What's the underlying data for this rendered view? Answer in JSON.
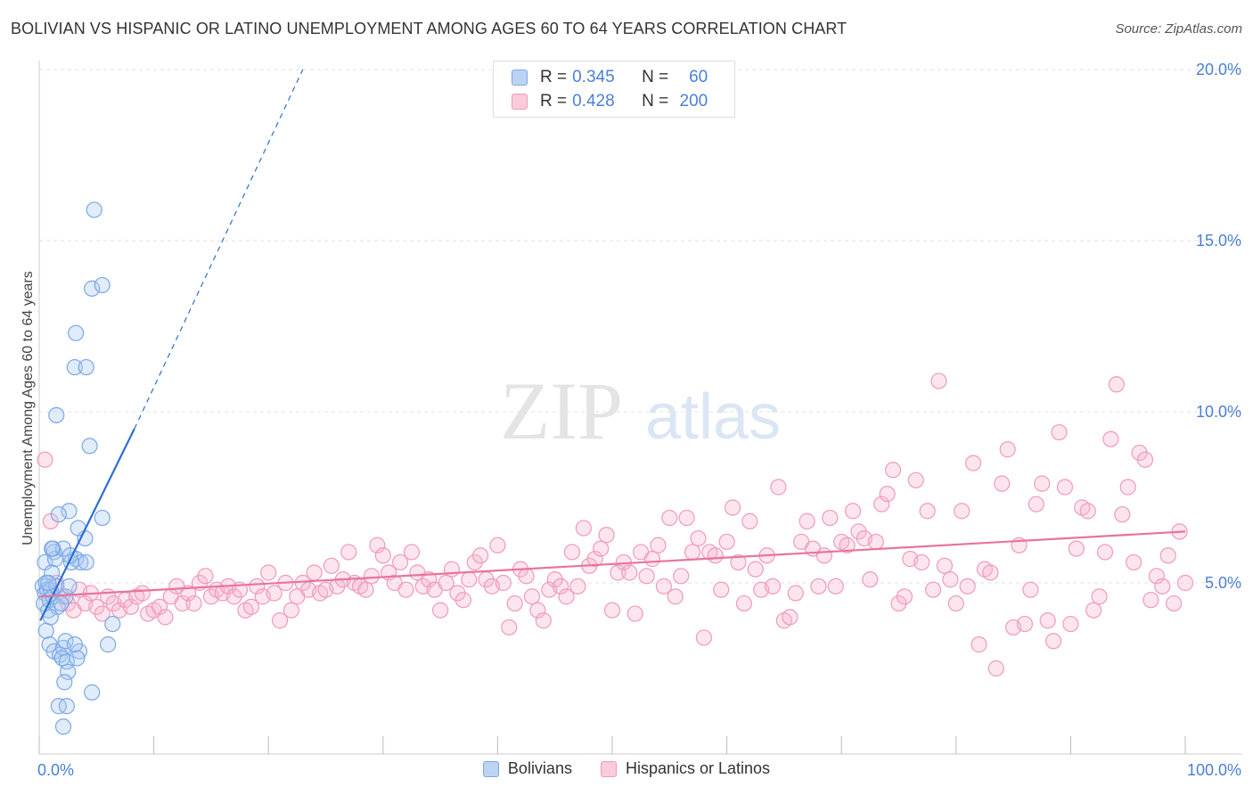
{
  "header": {
    "title": "BOLIVIAN VS HISPANIC OR LATINO UNEMPLOYMENT AMONG AGES 60 TO 64 YEARS CORRELATION CHART",
    "source": "Source: ZipAtlas.com"
  },
  "watermark": {
    "zip": "ZIP",
    "atlas": "atlas"
  },
  "legend": {
    "rows": [
      {
        "r_label": "R =",
        "r_value": "0.345",
        "n_label": "N =",
        "n_value": "60",
        "color": "#7aa8e6"
      },
      {
        "r_label": "R =",
        "r_value": "0.428",
        "n_label": "N =",
        "n_value": "200",
        "color": "#f09ab8"
      }
    ]
  },
  "bottom_legend": {
    "items": [
      {
        "label": "Bolivians",
        "color": "#7aa8e6"
      },
      {
        "label": "Hispanics or Latinos",
        "color": "#f09ab8"
      }
    ]
  },
  "chart_data": {
    "type": "scatter",
    "title": "BOLIVIAN VS HISPANIC OR LATINO UNEMPLOYMENT AMONG AGES 60 TO 64 YEARS CORRELATION CHART",
    "xlabel": "",
    "ylabel": "Unemployment Among Ages 60 to 64 years",
    "xlim": [
      0,
      100
    ],
    "ylim": [
      0,
      20
    ],
    "x_tick_labels": [
      "0.0%",
      "100.0%"
    ],
    "y_tick_labels": [
      "5.0%",
      "10.0%",
      "15.0%",
      "20.0%"
    ],
    "y_ticks": [
      5,
      10,
      15,
      20
    ],
    "grid": true,
    "legend_position": "top-center",
    "series": [
      {
        "name": "Bolivians",
        "color": "#7aa8e6",
        "line_color": "#2b6fcf",
        "trend": {
          "x0": 0.1,
          "y0": 3.9,
          "x1": 8.3,
          "y1": 9.5,
          "dash_x1": 23.0,
          "dash_y1": 20.0
        },
        "points": [
          [
            0.3,
            4.9
          ],
          [
            0.5,
            4.7
          ],
          [
            0.4,
            4.4
          ],
          [
            0.6,
            5.0
          ],
          [
            0.7,
            4.8
          ],
          [
            0.5,
            5.6
          ],
          [
            0.8,
            4.2
          ],
          [
            0.9,
            4.5
          ],
          [
            1.0,
            4.8
          ],
          [
            1.1,
            5.3
          ],
          [
            1.2,
            4.6
          ],
          [
            1.3,
            5.9
          ],
          [
            1.4,
            5.7
          ],
          [
            1.5,
            4.9
          ],
          [
            1.6,
            4.3
          ],
          [
            0.6,
            3.6
          ],
          [
            0.9,
            3.2
          ],
          [
            1.3,
            3.0
          ],
          [
            1.8,
            2.9
          ],
          [
            2.1,
            3.1
          ],
          [
            2.0,
            2.8
          ],
          [
            2.3,
            3.3
          ],
          [
            2.4,
            2.7
          ],
          [
            2.5,
            2.4
          ],
          [
            2.2,
            2.1
          ],
          [
            1.7,
            1.4
          ],
          [
            2.4,
            1.4
          ],
          [
            2.1,
            0.8
          ],
          [
            2.3,
            4.6
          ],
          [
            2.6,
            4.9
          ],
          [
            3.2,
            5.7
          ],
          [
            3.6,
            5.6
          ],
          [
            3.5,
            3.0
          ],
          [
            3.3,
            2.8
          ],
          [
            3.1,
            3.2
          ],
          [
            4.1,
            5.6
          ],
          [
            4.0,
            6.3
          ],
          [
            3.4,
            6.6
          ],
          [
            2.6,
            7.1
          ],
          [
            1.7,
            7.0
          ],
          [
            1.2,
            6.0
          ],
          [
            2.1,
            6.0
          ],
          [
            1.5,
            9.9
          ],
          [
            4.4,
            9.0
          ],
          [
            3.2,
            12.3
          ],
          [
            3.1,
            11.3
          ],
          [
            4.1,
            11.3
          ],
          [
            4.6,
            13.6
          ],
          [
            5.5,
            13.7
          ],
          [
            4.8,
            15.9
          ],
          [
            5.5,
            6.9
          ],
          [
            4.6,
            1.8
          ],
          [
            6.0,
            3.2
          ],
          [
            6.4,
            3.8
          ],
          [
            1.0,
            4.0
          ],
          [
            0.8,
            5.0
          ],
          [
            1.9,
            4.4
          ],
          [
            2.8,
            5.6
          ],
          [
            1.1,
            6.0
          ],
          [
            2.7,
            5.8
          ]
        ]
      },
      {
        "name": "Hispanics or Latinos",
        "color": "#f09ab8",
        "line_color": "#e8749c",
        "trend": {
          "x0": 0.0,
          "y0": 4.6,
          "x1": 100.0,
          "y1": 6.5
        },
        "points": [
          [
            0.5,
            8.6
          ],
          [
            1.0,
            6.8
          ],
          [
            1.5,
            5.0
          ],
          [
            2.0,
            4.6
          ],
          [
            2.5,
            4.4
          ],
          [
            3.0,
            4.2
          ],
          [
            3.5,
            4.8
          ],
          [
            4.0,
            4.4
          ],
          [
            4.5,
            4.7
          ],
          [
            5.0,
            4.3
          ],
          [
            5.5,
            4.1
          ],
          [
            6.0,
            4.6
          ],
          [
            6.5,
            4.4
          ],
          [
            7.0,
            4.2
          ],
          [
            7.5,
            4.5
          ],
          [
            8.0,
            4.3
          ],
          [
            8.5,
            4.6
          ],
          [
            9.0,
            4.7
          ],
          [
            9.5,
            4.1
          ],
          [
            10.0,
            4.2
          ],
          [
            10.5,
            4.3
          ],
          [
            11.0,
            4.0
          ],
          [
            11.5,
            4.6
          ],
          [
            12.0,
            4.9
          ],
          [
            12.5,
            4.4
          ],
          [
            13.0,
            4.7
          ],
          [
            13.5,
            4.4
          ],
          [
            14.0,
            5.0
          ],
          [
            14.5,
            5.2
          ],
          [
            15.0,
            4.6
          ],
          [
            15.5,
            4.8
          ],
          [
            16.0,
            4.7
          ],
          [
            16.5,
            4.9
          ],
          [
            17.0,
            4.6
          ],
          [
            17.5,
            4.8
          ],
          [
            18.0,
            4.2
          ],
          [
            18.5,
            4.3
          ],
          [
            19.0,
            4.9
          ],
          [
            19.5,
            4.6
          ],
          [
            20.0,
            5.3
          ],
          [
            20.5,
            4.7
          ],
          [
            21.0,
            3.9
          ],
          [
            21.5,
            5.0
          ],
          [
            22.0,
            4.2
          ],
          [
            22.5,
            4.6
          ],
          [
            23.0,
            5.0
          ],
          [
            23.5,
            4.8
          ],
          [
            24.0,
            5.3
          ],
          [
            24.5,
            4.7
          ],
          [
            25.0,
            4.8
          ],
          [
            25.5,
            5.5
          ],
          [
            26.0,
            4.9
          ],
          [
            26.5,
            5.1
          ],
          [
            27.0,
            5.9
          ],
          [
            27.5,
            5.0
          ],
          [
            28.0,
            4.9
          ],
          [
            28.5,
            4.8
          ],
          [
            29.0,
            5.2
          ],
          [
            29.5,
            6.1
          ],
          [
            30.0,
            5.8
          ],
          [
            30.5,
            5.3
          ],
          [
            31.0,
            5.0
          ],
          [
            31.5,
            5.6
          ],
          [
            32.0,
            4.8
          ],
          [
            32.5,
            5.9
          ],
          [
            33.0,
            5.3
          ],
          [
            33.5,
            4.9
          ],
          [
            34.0,
            5.1
          ],
          [
            34.5,
            4.8
          ],
          [
            35.0,
            4.2
          ],
          [
            35.5,
            5.0
          ],
          [
            36.0,
            5.4
          ],
          [
            36.5,
            4.7
          ],
          [
            37.0,
            4.5
          ],
          [
            37.5,
            5.1
          ],
          [
            38.0,
            5.6
          ],
          [
            38.5,
            5.8
          ],
          [
            39.0,
            5.1
          ],
          [
            39.5,
            4.9
          ],
          [
            40.0,
            6.1
          ],
          [
            40.5,
            5.0
          ],
          [
            41.0,
            3.7
          ],
          [
            41.5,
            4.4
          ],
          [
            42.0,
            5.4
          ],
          [
            42.5,
            5.2
          ],
          [
            43.0,
            4.6
          ],
          [
            43.5,
            4.2
          ],
          [
            44.0,
            3.9
          ],
          [
            44.5,
            4.8
          ],
          [
            45.0,
            5.1
          ],
          [
            45.5,
            4.9
          ],
          [
            46.0,
            4.6
          ],
          [
            46.5,
            5.9
          ],
          [
            47.0,
            4.9
          ],
          [
            47.5,
            6.6
          ],
          [
            48.0,
            5.5
          ],
          [
            48.5,
            5.7
          ],
          [
            49.0,
            6.0
          ],
          [
            49.5,
            6.4
          ],
          [
            50.0,
            4.2
          ],
          [
            50.5,
            5.3
          ],
          [
            51.0,
            5.6
          ],
          [
            51.5,
            5.3
          ],
          [
            52.0,
            4.1
          ],
          [
            52.5,
            5.9
          ],
          [
            53.0,
            5.2
          ],
          [
            53.5,
            5.7
          ],
          [
            54.0,
            6.1
          ],
          [
            54.5,
            4.9
          ],
          [
            55.0,
            6.9
          ],
          [
            55.5,
            4.6
          ],
          [
            56.0,
            5.2
          ],
          [
            56.5,
            6.9
          ],
          [
            57.0,
            5.9
          ],
          [
            57.5,
            6.3
          ],
          [
            58.0,
            3.4
          ],
          [
            58.5,
            5.9
          ],
          [
            59.0,
            5.8
          ],
          [
            59.5,
            4.8
          ],
          [
            60.0,
            6.2
          ],
          [
            60.5,
            7.2
          ],
          [
            61.0,
            5.6
          ],
          [
            61.5,
            4.4
          ],
          [
            62.0,
            6.8
          ],
          [
            62.5,
            5.4
          ],
          [
            63.0,
            4.8
          ],
          [
            63.5,
            5.8
          ],
          [
            64.0,
            4.9
          ],
          [
            64.5,
            7.8
          ],
          [
            65.0,
            3.9
          ],
          [
            65.5,
            4.0
          ],
          [
            66.0,
            4.7
          ],
          [
            66.5,
            6.2
          ],
          [
            67.0,
            6.8
          ],
          [
            67.5,
            6.0
          ],
          [
            68.0,
            4.9
          ],
          [
            68.5,
            5.8
          ],
          [
            69.0,
            6.9
          ],
          [
            69.5,
            4.9
          ],
          [
            70.0,
            6.2
          ],
          [
            70.5,
            6.1
          ],
          [
            71.0,
            7.1
          ],
          [
            71.5,
            6.5
          ],
          [
            72.0,
            6.3
          ],
          [
            72.5,
            5.1
          ],
          [
            73.0,
            6.2
          ],
          [
            73.5,
            7.3
          ],
          [
            74.0,
            7.6
          ],
          [
            74.5,
            8.3
          ],
          [
            75.0,
            4.4
          ],
          [
            75.5,
            4.6
          ],
          [
            76.0,
            5.7
          ],
          [
            76.5,
            8.0
          ],
          [
            77.0,
            5.6
          ],
          [
            77.5,
            7.1
          ],
          [
            78.0,
            4.8
          ],
          [
            78.5,
            10.9
          ],
          [
            79.0,
            5.5
          ],
          [
            79.5,
            5.1
          ],
          [
            80.0,
            4.4
          ],
          [
            80.5,
            7.1
          ],
          [
            81.0,
            4.9
          ],
          [
            81.5,
            8.5
          ],
          [
            82.0,
            3.2
          ],
          [
            82.5,
            5.4
          ],
          [
            83.0,
            5.3
          ],
          [
            83.5,
            2.5
          ],
          [
            84.0,
            7.9
          ],
          [
            84.5,
            8.9
          ],
          [
            85.0,
            3.7
          ],
          [
            85.5,
            6.1
          ],
          [
            86.0,
            3.8
          ],
          [
            86.5,
            4.8
          ],
          [
            87.0,
            7.3
          ],
          [
            87.5,
            7.9
          ],
          [
            88.0,
            3.9
          ],
          [
            88.5,
            3.3
          ],
          [
            89.0,
            9.4
          ],
          [
            89.5,
            7.8
          ],
          [
            90.0,
            3.8
          ],
          [
            90.5,
            6.0
          ],
          [
            91.0,
            7.2
          ],
          [
            91.5,
            7.1
          ],
          [
            92.0,
            4.2
          ],
          [
            92.5,
            4.6
          ],
          [
            93.0,
            5.9
          ],
          [
            93.5,
            9.2
          ],
          [
            94.0,
            10.8
          ],
          [
            94.5,
            7.0
          ],
          [
            95.0,
            7.8
          ],
          [
            95.5,
            5.6
          ],
          [
            96.0,
            8.8
          ],
          [
            96.5,
            8.6
          ],
          [
            97.0,
            4.5
          ],
          [
            97.5,
            5.2
          ],
          [
            98.0,
            4.9
          ],
          [
            98.5,
            5.8
          ],
          [
            99.0,
            4.4
          ],
          [
            99.5,
            6.5
          ],
          [
            100.0,
            5.0
          ]
        ]
      }
    ]
  }
}
